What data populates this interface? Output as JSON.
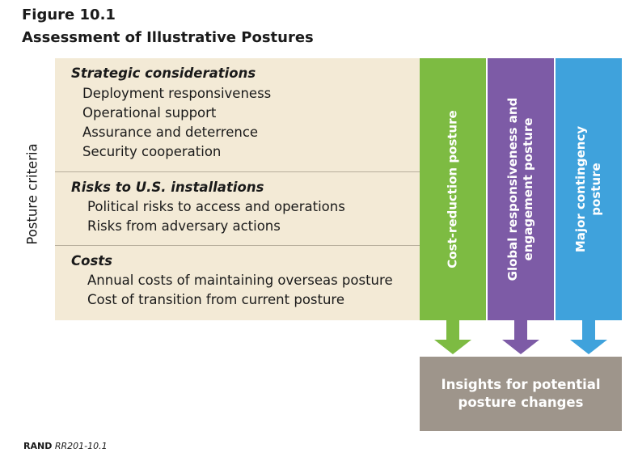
{
  "figure": {
    "label": "Figure 10.1",
    "title": "Assessment of Illustrative Postures"
  },
  "criteria": {
    "side_label": "Posture criteria",
    "sections": [
      {
        "heading": "Strategic considerations",
        "items": [
          "Deployment responsiveness",
          "Operational support",
          "Assurance and deterrence",
          "Security cooperation"
        ]
      },
      {
        "heading": "Risks to U.S. installations",
        "items": [
          "Political risks to access and operations",
          "Risks from adversary actions"
        ]
      },
      {
        "heading": "Costs",
        "items": [
          "Annual costs of maintaining overseas posture",
          "Cost of transition from current posture"
        ]
      }
    ]
  },
  "postures": [
    {
      "line1": "Cost-reduction posture",
      "line2": "",
      "color": "#7dbb42"
    },
    {
      "line1": "Global responsiveness and",
      "line2": "engagement posture",
      "color": "#7d5ba6"
    },
    {
      "line1": "Major contingency",
      "line2": "posture",
      "color": "#3fa2dc"
    }
  ],
  "insights": {
    "line1": "Insights for potential",
    "line2": "posture changes",
    "color": "#9e958b"
  },
  "footer": {
    "org": "RAND",
    "code": "RR201-10.1"
  }
}
